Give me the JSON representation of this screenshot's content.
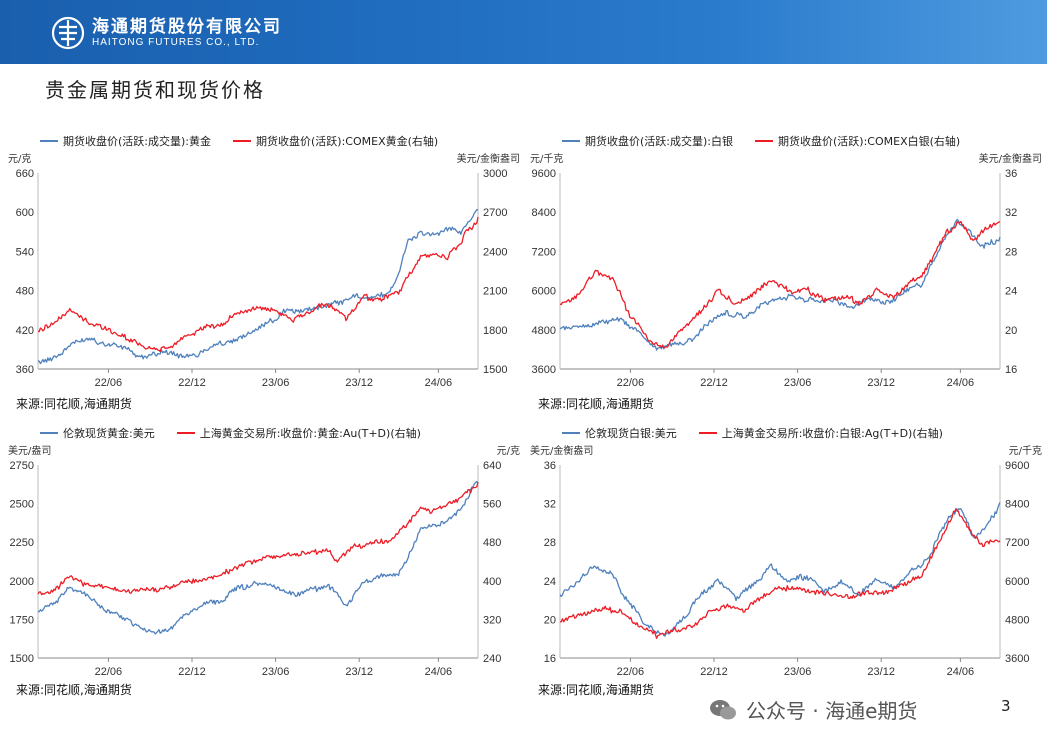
{
  "header": {
    "company_cn": "海通期货股份有限公司",
    "company_en": "HAITONG FUTURES CO., LTD."
  },
  "page_title": "贵金属期货和现货价格",
  "sources": {
    "tl": "来源:同花顺,海通期货",
    "tr": "来源:同花顺,海通期货",
    "bl": "来源:同花顺,海通期货",
    "br": "来源:同花顺,海通期货"
  },
  "watermark": {
    "text": "公众号 · 海通e期货"
  },
  "page_number": "3",
  "colors": {
    "blue": "#4f81bd",
    "red": "#ee1c25",
    "accent": "#1f6bbd"
  },
  "chart_data": [
    {
      "id": "tl",
      "type": "line",
      "x_ticks": [
        "22/06",
        "22/12",
        "23/06",
        "23/12",
        "24/06"
      ],
      "left_unit": "元/克",
      "right_unit": "美元/金衡盎司",
      "left_ticks": [
        "660",
        "600",
        "540",
        "480",
        "420",
        "360"
      ],
      "right_ticks": [
        "3000",
        "2700",
        "2400",
        "2100",
        "1800",
        "1500"
      ],
      "ylim_left": [
        360,
        660
      ],
      "ylim_right": [
        1500,
        3000
      ],
      "series": [
        {
          "name": "期货收盘价(活跃:成交量):黄金",
          "axis": "left",
          "color": "#4f81bd",
          "points": [
            [
              0,
              368
            ],
            [
              0.05,
              380
            ],
            [
              0.08,
              400
            ],
            [
              0.12,
              405
            ],
            [
              0.16,
              398
            ],
            [
              0.2,
              392
            ],
            [
              0.24,
              375
            ],
            [
              0.28,
              388
            ],
            [
              0.32,
              382
            ],
            [
              0.36,
              380
            ],
            [
              0.4,
              395
            ],
            [
              0.44,
              404
            ],
            [
              0.48,
              415
            ],
            [
              0.52,
              428
            ],
            [
              0.56,
              448
            ],
            [
              0.6,
              450
            ],
            [
              0.64,
              455
            ],
            [
              0.68,
              462
            ],
            [
              0.72,
              470
            ],
            [
              0.76,
              468
            ],
            [
              0.8,
              480
            ],
            [
              0.82,
              505
            ],
            [
              0.84,
              555
            ],
            [
              0.87,
              570
            ],
            [
              0.9,
              565
            ],
            [
              0.93,
              575
            ],
            [
              0.96,
              570
            ],
            [
              1,
              605
            ]
          ]
        },
        {
          "name": "期货收盘价(活跃):COMEX黄金(右轴)",
          "axis": "right",
          "color": "#ee1c25",
          "points": [
            [
              0,
              1800
            ],
            [
              0.04,
              1850
            ],
            [
              0.07,
              1950
            ],
            [
              0.1,
              1880
            ],
            [
              0.14,
              1830
            ],
            [
              0.18,
              1760
            ],
            [
              0.22,
              1720
            ],
            [
              0.26,
              1650
            ],
            [
              0.3,
              1660
            ],
            [
              0.34,
              1760
            ],
            [
              0.38,
              1820
            ],
            [
              0.42,
              1850
            ],
            [
              0.46,
              1930
            ],
            [
              0.5,
              1960
            ],
            [
              0.54,
              1940
            ],
            [
              0.58,
              1880
            ],
            [
              0.62,
              1950
            ],
            [
              0.66,
              2000
            ],
            [
              0.7,
              1880
            ],
            [
              0.74,
              2050
            ],
            [
              0.78,
              2040
            ],
            [
              0.82,
              2080
            ],
            [
              0.84,
              2200
            ],
            [
              0.87,
              2350
            ],
            [
              0.9,
              2380
            ],
            [
              0.93,
              2340
            ],
            [
              0.96,
              2480
            ],
            [
              1,
              2650
            ]
          ]
        }
      ]
    },
    {
      "id": "tr",
      "type": "line",
      "x_ticks": [
        "22/06",
        "22/12",
        "23/06",
        "23/12",
        "24/06"
      ],
      "left_unit": "元/千克",
      "right_unit": "美元/金衡盎司",
      "left_ticks": [
        "9600",
        "8400",
        "7200",
        "6000",
        "4800",
        "3600"
      ],
      "right_ticks": [
        "36",
        "32",
        "28",
        "24",
        "20",
        "16"
      ],
      "ylim_left": [
        3600,
        9600
      ],
      "ylim_right": [
        16,
        36
      ],
      "series": [
        {
          "name": "期货收盘价(活跃:成交量):白银",
          "axis": "left",
          "color": "#4f81bd",
          "points": [
            [
              0,
              4800
            ],
            [
              0.05,
              4900
            ],
            [
              0.1,
              5050
            ],
            [
              0.14,
              5100
            ],
            [
              0.18,
              4700
            ],
            [
              0.22,
              4250
            ],
            [
              0.26,
              4350
            ],
            [
              0.3,
              4500
            ],
            [
              0.34,
              5050
            ],
            [
              0.38,
              5300
            ],
            [
              0.42,
              5200
            ],
            [
              0.46,
              5600
            ],
            [
              0.5,
              5800
            ],
            [
              0.54,
              5750
            ],
            [
              0.58,
              5700
            ],
            [
              0.62,
              5650
            ],
            [
              0.66,
              5500
            ],
            [
              0.7,
              5800
            ],
            [
              0.74,
              5600
            ],
            [
              0.78,
              5900
            ],
            [
              0.82,
              6200
            ],
            [
              0.84,
              6700
            ],
            [
              0.87,
              7500
            ],
            [
              0.9,
              8100
            ],
            [
              0.93,
              7800
            ],
            [
              0.96,
              7300
            ],
            [
              1,
              7600
            ]
          ]
        },
        {
          "name": "期货收盘价(活跃):COMEX白银(右轴)",
          "axis": "right",
          "color": "#ee1c25",
          "points": [
            [
              0,
              22.5
            ],
            [
              0.04,
              23.5
            ],
            [
              0.08,
              26
            ],
            [
              0.12,
              25
            ],
            [
              0.16,
              21.5
            ],
            [
              0.2,
              19
            ],
            [
              0.24,
              18.2
            ],
            [
              0.28,
              20
            ],
            [
              0.32,
              22
            ],
            [
              0.36,
              24
            ],
            [
              0.4,
              22.5
            ],
            [
              0.44,
              23.5
            ],
            [
              0.48,
              25
            ],
            [
              0.52,
              24
            ],
            [
              0.56,
              24.2
            ],
            [
              0.6,
              23
            ],
            [
              0.64,
              23.5
            ],
            [
              0.68,
              22.8
            ],
            [
              0.72,
              24
            ],
            [
              0.76,
              23.2
            ],
            [
              0.8,
              25
            ],
            [
              0.82,
              25.5
            ],
            [
              0.85,
              27.5
            ],
            [
              0.88,
              30
            ],
            [
              0.91,
              31
            ],
            [
              0.94,
              29
            ],
            [
              0.97,
              30.5
            ],
            [
              1,
              31
            ]
          ]
        }
      ]
    },
    {
      "id": "bl",
      "type": "line",
      "x_ticks": [
        "22/06",
        "22/12",
        "23/06",
        "23/12",
        "24/06"
      ],
      "left_unit": "美元/盎司",
      "right_unit": "元/克",
      "left_ticks": [
        "2750",
        "2500",
        "2250",
        "2000",
        "1750",
        "1500"
      ],
      "right_ticks": [
        "640",
        "560",
        "480",
        "400",
        "320",
        "240"
      ],
      "ylim_left": [
        1500,
        2750
      ],
      "ylim_right": [
        240,
        640
      ],
      "series": [
        {
          "name": "伦敦现货黄金:美元",
          "axis": "left",
          "color": "#4f81bd",
          "points": [
            [
              0,
              1800
            ],
            [
              0.04,
              1850
            ],
            [
              0.07,
              1960
            ],
            [
              0.1,
              1920
            ],
            [
              0.14,
              1840
            ],
            [
              0.18,
              1780
            ],
            [
              0.22,
              1710
            ],
            [
              0.26,
              1660
            ],
            [
              0.3,
              1680
            ],
            [
              0.34,
              1790
            ],
            [
              0.38,
              1850
            ],
            [
              0.42,
              1880
            ],
            [
              0.46,
              1960
            ],
            [
              0.5,
              1990
            ],
            [
              0.54,
              1960
            ],
            [
              0.58,
              1910
            ],
            [
              0.62,
              1940
            ],
            [
              0.66,
              1970
            ],
            [
              0.7,
              1840
            ],
            [
              0.74,
              1990
            ],
            [
              0.78,
              2040
            ],
            [
              0.82,
              2040
            ],
            [
              0.84,
              2160
            ],
            [
              0.87,
              2330
            ],
            [
              0.9,
              2360
            ],
            [
              0.93,
              2380
            ],
            [
              0.96,
              2460
            ],
            [
              1,
              2650
            ]
          ]
        },
        {
          "name": "上海黄金交易所:收盘价:黄金:Au(T+D)(右轴)",
          "axis": "right",
          "color": "#ee1c25",
          "points": [
            [
              0,
              370
            ],
            [
              0.04,
              385
            ],
            [
              0.07,
              405
            ],
            [
              0.1,
              395
            ],
            [
              0.14,
              388
            ],
            [
              0.18,
              384
            ],
            [
              0.22,
              378
            ],
            [
              0.26,
              382
            ],
            [
              0.3,
              385
            ],
            [
              0.34,
              400
            ],
            [
              0.38,
              405
            ],
            [
              0.42,
              412
            ],
            [
              0.46,
              432
            ],
            [
              0.5,
              446
            ],
            [
              0.54,
              452
            ],
            [
              0.58,
              455
            ],
            [
              0.62,
              460
            ],
            [
              0.66,
              466
            ],
            [
              0.68,
              438
            ],
            [
              0.72,
              472
            ],
            [
              0.76,
              478
            ],
            [
              0.8,
              482
            ],
            [
              0.84,
              520
            ],
            [
              0.87,
              552
            ],
            [
              0.9,
              545
            ],
            [
              0.93,
              558
            ],
            [
              0.96,
              570
            ],
            [
              1,
              600
            ]
          ]
        }
      ]
    },
    {
      "id": "br",
      "type": "line",
      "x_ticks": [
        "22/06",
        "22/12",
        "23/06",
        "23/12",
        "24/06"
      ],
      "left_unit": "美元/金衡盎司",
      "right_unit": "元/千克",
      "left_ticks": [
        "36",
        "32",
        "28",
        "24",
        "20",
        "16"
      ],
      "right_ticks": [
        "9600",
        "8400",
        "7200",
        "6000",
        "4800",
        "3600"
      ],
      "ylim_left": [
        16,
        36
      ],
      "ylim_right": [
        3600,
        9600
      ],
      "series": [
        {
          "name": "伦敦现货白银:美元",
          "axis": "left",
          "color": "#4f81bd",
          "points": [
            [
              0,
              22.5
            ],
            [
              0.04,
              23.8
            ],
            [
              0.08,
              25.5
            ],
            [
              0.12,
              24.5
            ],
            [
              0.16,
              21.5
            ],
            [
              0.2,
              19.2
            ],
            [
              0.24,
              18.3
            ],
            [
              0.28,
              20.2
            ],
            [
              0.32,
              22.5
            ],
            [
              0.36,
              24
            ],
            [
              0.4,
              22.2
            ],
            [
              0.44,
              23.6
            ],
            [
              0.48,
              25.5
            ],
            [
              0.52,
              23.8
            ],
            [
              0.56,
              24.5
            ],
            [
              0.6,
              23
            ],
            [
              0.64,
              23.8
            ],
            [
              0.68,
              22.6
            ],
            [
              0.72,
              24.2
            ],
            [
              0.76,
              23.2
            ],
            [
              0.8,
              25.2
            ],
            [
              0.82,
              25.5
            ],
            [
              0.85,
              27.5
            ],
            [
              0.88,
              30.5
            ],
            [
              0.91,
              31.5
            ],
            [
              0.94,
              28.5
            ],
            [
              0.97,
              29.5
            ],
            [
              1,
              32
            ]
          ]
        },
        {
          "name": "上海黄金交易所:收盘价:白银:Ag(T+D)(右轴)",
          "axis": "right",
          "color": "#ee1c25",
          "points": [
            [
              0,
              4800
            ],
            [
              0.05,
              5000
            ],
            [
              0.1,
              5150
            ],
            [
              0.14,
              5000
            ],
            [
              0.18,
              4600
            ],
            [
              0.22,
              4300
            ],
            [
              0.26,
              4450
            ],
            [
              0.3,
              4600
            ],
            [
              0.34,
              5000
            ],
            [
              0.38,
              5200
            ],
            [
              0.42,
              5100
            ],
            [
              0.46,
              5500
            ],
            [
              0.5,
              5800
            ],
            [
              0.54,
              5700
            ],
            [
              0.58,
              5650
            ],
            [
              0.62,
              5600
            ],
            [
              0.66,
              5450
            ],
            [
              0.7,
              5700
            ],
            [
              0.74,
              5600
            ],
            [
              0.78,
              5900
            ],
            [
              0.82,
              6100
            ],
            [
              0.84,
              6600
            ],
            [
              0.87,
              7400
            ],
            [
              0.9,
              8200
            ],
            [
              0.93,
              7600
            ],
            [
              0.96,
              7100
            ],
            [
              1,
              7300
            ]
          ]
        }
      ]
    }
  ]
}
